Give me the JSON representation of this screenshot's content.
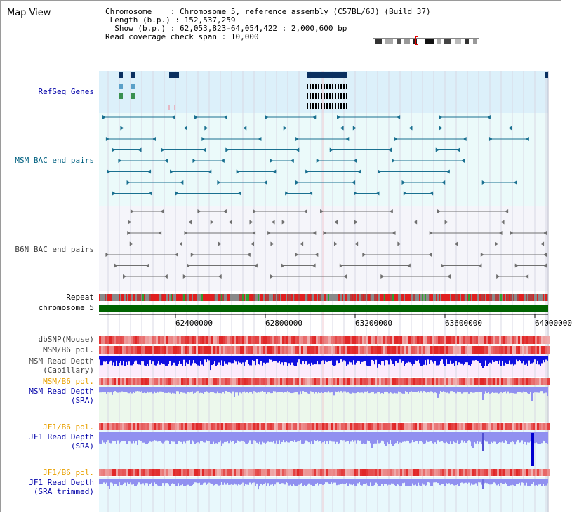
{
  "title": "Map View",
  "info": {
    "chromosome_key": "Chromosome",
    "chromosome_val": "Chromosome 5, reference assembly (C57BL/6J) (Build 37)",
    "length_key": "Length (b.p.)",
    "length_val": "152,537,259",
    "show_key": "Show (b.p.)",
    "show_val": "62,053,823-64,054,422 : 2,000,600 bp",
    "coverage_key": "Read coverage check span",
    "coverage_val": "10,000"
  },
  "view_range": {
    "start": 62053823,
    "end": 64054422
  },
  "axis_ticks": [
    "62400000",
    "62800000",
    "63200000",
    "63600000",
    "64000000"
  ],
  "tracks": {
    "refseq": "RefSeq Genes",
    "msm_bac": "MSM BAC end pairs",
    "b6n_bac": "B6N BAC end pairs",
    "repeat": "Repeat",
    "chromosome": "chromosome 5",
    "dbsnp": "dbSNP(Mouse)",
    "msm_b6_pol_1": "MSM/B6 pol.",
    "msm_depth_cap_1": "MSM Read Depth",
    "msm_depth_cap_2": "(Capillary)",
    "msm_b6_pol_2": "MSM/B6 pol.",
    "msm_depth_sra_1": "MSM Read Depth",
    "msm_depth_sra_2": "(SRA)",
    "jf1_b6_pol_1": "JF1/B6 pol.",
    "jf1_depth_sra_1": "JF1 Read Depth",
    "jf1_depth_sra_2": "(SRA)",
    "jf1_b6_pol_2": "JF1/B6 pol.",
    "jf1_depth_trim_1": "JF1 Read Depth",
    "jf1_depth_trim_2": "(SRA trimmed)"
  },
  "colors": {
    "refseq_bg": "#dcf0fa",
    "msm_bac_bg": "#ebfafa",
    "b6n_bac_bg": "#f5f5fa",
    "depth_bg": "#fcecfc",
    "sra_bg": "#ecf8ec",
    "jf1_bg": "#e8f8fc",
    "chromosome_bar": "#006400",
    "cap_depth": "#1010e0",
    "sra_depth": "#9090f0",
    "bac_msm_stroke": "#1a7090",
    "bac_b6n_stroke": "#707070"
  }
}
